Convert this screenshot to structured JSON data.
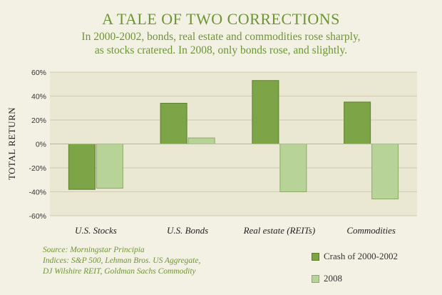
{
  "title": "A TALE OF TWO CORRECTIONS",
  "subtitle_lines": [
    "In 2000-2002, bonds, real estate and commodities rose sharply,",
    "as stocks cratered. In 2008, only bonds rose, and slightly."
  ],
  "source_lines": [
    "Source: Morningstar Principia",
    "Indices: S&P 500, Lehman Bros. US Aggregate,",
    "DJ Wilshire REIT, Goldman Sachs Commodity"
  ],
  "colors": {
    "series1": "#7da447",
    "series1_edge": "#5c7f2c",
    "series2": "#b8d398",
    "series2_edge": "#8aab63",
    "plot_bg": "#eae7d2",
    "grid": "#cfcab0",
    "text_green": "#6f9436"
  },
  "chart_data": {
    "type": "bar",
    "title": "A TALE OF TWO CORRECTIONS",
    "ylabel": "TOTAL RETURN",
    "xlabel": "",
    "categories": [
      "U.S. Stocks",
      "U.S. Bonds",
      "Real estate (REITs)",
      "Commodities"
    ],
    "series": [
      {
        "name": "Crash of 2000-2002",
        "values": [
          -38,
          34,
          53,
          35
        ]
      },
      {
        "name": "2008",
        "values": [
          -37,
          5,
          -40,
          -46
        ]
      }
    ],
    "ylim": [
      -60,
      60
    ],
    "yticks": [
      60,
      40,
      20,
      0,
      -20,
      -40,
      -60
    ],
    "ytick_labels": [
      "60%",
      "40%",
      "20%",
      "0%",
      "-20%",
      "-40%",
      "-60%"
    ],
    "grid": true,
    "legend_position": "bottom-right"
  }
}
